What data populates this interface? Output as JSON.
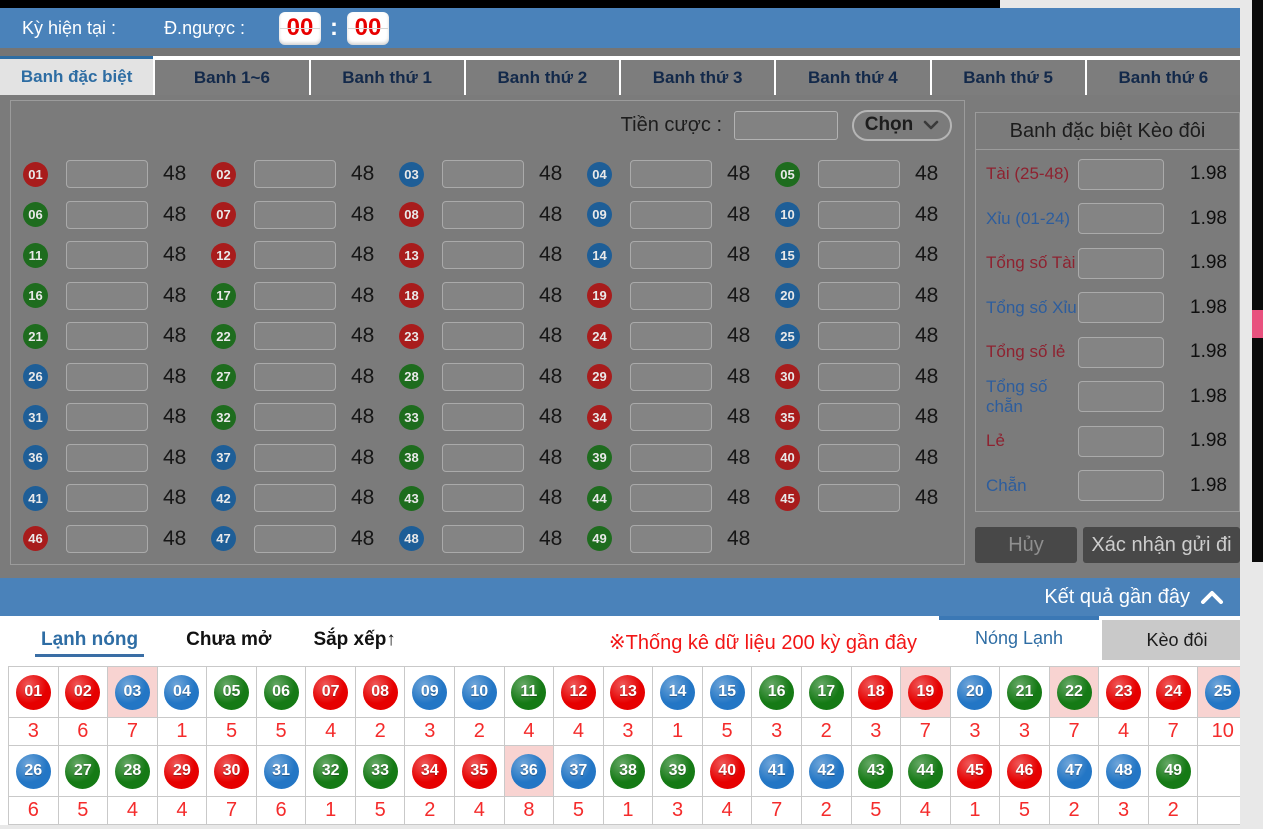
{
  "header": {
    "period_label": "Kỳ hiện tại :",
    "countdown_label": "Đ.ngược :",
    "countdown": {
      "minutes": "00",
      "seconds": "00",
      "separator": ":"
    }
  },
  "main_tabs": [
    {
      "id": "banh-dac-biet",
      "label": "Banh đặc biệt",
      "active": true
    },
    {
      "id": "banh-1-6",
      "label": "Banh 1~6",
      "active": false
    },
    {
      "id": "banh-thu-1",
      "label": "Banh thứ 1",
      "active": false
    },
    {
      "id": "banh-thu-2",
      "label": "Banh thứ 2",
      "active": false
    },
    {
      "id": "banh-thu-3",
      "label": "Banh thứ 3",
      "active": false
    },
    {
      "id": "banh-thu-4",
      "label": "Banh thứ 4",
      "active": false
    },
    {
      "id": "banh-thu-5",
      "label": "Banh thứ 5",
      "active": false
    },
    {
      "id": "banh-thu-6",
      "label": "Banh thứ 6",
      "active": false
    }
  ],
  "bet_panel": {
    "amount_label": "Tiền cược :",
    "amount_value": "",
    "select_label": "Chọn",
    "odds_display": "48",
    "numbers": [
      "01",
      "02",
      "03",
      "04",
      "05",
      "06",
      "07",
      "08",
      "09",
      "10",
      "11",
      "12",
      "13",
      "14",
      "15",
      "16",
      "17",
      "18",
      "19",
      "20",
      "21",
      "22",
      "23",
      "24",
      "25",
      "26",
      "27",
      "28",
      "29",
      "30",
      "31",
      "32",
      "33",
      "34",
      "35",
      "36",
      "37",
      "38",
      "39",
      "40",
      "41",
      "42",
      "43",
      "44",
      "45",
      "46",
      "47",
      "48",
      "49"
    ]
  },
  "ball_colors": {
    "red": [
      1,
      2,
      7,
      8,
      12,
      13,
      18,
      19,
      23,
      24,
      29,
      30,
      34,
      35,
      40,
      45,
      46
    ],
    "blue": [
      3,
      4,
      9,
      10,
      14,
      15,
      20,
      25,
      26,
      31,
      36,
      37,
      41,
      42,
      47,
      48
    ],
    "green": [
      5,
      6,
      11,
      16,
      17,
      21,
      22,
      27,
      28,
      32,
      33,
      38,
      39,
      43,
      44,
      49
    ]
  },
  "side_panel": {
    "title": "Banh đặc biệt Kèo đôi",
    "rows": [
      {
        "label": "Tài (25-48)",
        "tone": "red",
        "odds": "1.98"
      },
      {
        "label": "Xỉu (01-24)",
        "tone": "blue",
        "odds": "1.98"
      },
      {
        "label": "Tổng số Tài",
        "tone": "red",
        "odds": "1.98"
      },
      {
        "label": "Tổng số Xỉu",
        "tone": "blue",
        "odds": "1.98"
      },
      {
        "label": "Tổng số lẻ",
        "tone": "red",
        "odds": "1.98"
      },
      {
        "label": "Tổng số chẵn",
        "tone": "blue",
        "odds": "1.98"
      },
      {
        "label": "Lẻ",
        "tone": "red",
        "odds": "1.98"
      },
      {
        "label": "Chẵn",
        "tone": "blue",
        "odds": "1.98"
      }
    ],
    "cancel_label": "Hủy",
    "confirm_label": "Xác nhận gửi đi"
  },
  "results_bar": {
    "label": "Kết quả gần đây"
  },
  "stats": {
    "filter_tabs": [
      {
        "id": "lanh-nong",
        "label": "Lạnh nóng",
        "active": true
      },
      {
        "id": "chua-mo",
        "label": "Chưa mở",
        "active": false
      },
      {
        "id": "sap-xep",
        "label": "Sắp xếp↑",
        "active": false
      }
    ],
    "notice": "※Thống kê dữ liệu 200 kỳ gần đây",
    "view_tabs": [
      {
        "id": "nong-lanh",
        "label": "Nóng Lạnh",
        "active": true
      },
      {
        "id": "keo-doi",
        "label": "Kèo đôi",
        "active": false
      }
    ],
    "columns_per_row": 25,
    "cells": [
      {
        "num": "01",
        "count": "3",
        "hot": false
      },
      {
        "num": "02",
        "count": "6",
        "hot": false
      },
      {
        "num": "03",
        "count": "7",
        "hot": true
      },
      {
        "num": "04",
        "count": "1",
        "hot": false
      },
      {
        "num": "05",
        "count": "5",
        "hot": false
      },
      {
        "num": "06",
        "count": "5",
        "hot": false
      },
      {
        "num": "07",
        "count": "4",
        "hot": false
      },
      {
        "num": "08",
        "count": "2",
        "hot": false
      },
      {
        "num": "09",
        "count": "3",
        "hot": false
      },
      {
        "num": "10",
        "count": "2",
        "hot": false
      },
      {
        "num": "11",
        "count": "4",
        "hot": false
      },
      {
        "num": "12",
        "count": "4",
        "hot": false
      },
      {
        "num": "13",
        "count": "3",
        "hot": false
      },
      {
        "num": "14",
        "count": "1",
        "hot": false
      },
      {
        "num": "15",
        "count": "5",
        "hot": false
      },
      {
        "num": "16",
        "count": "3",
        "hot": false
      },
      {
        "num": "17",
        "count": "2",
        "hot": false
      },
      {
        "num": "18",
        "count": "3",
        "hot": false
      },
      {
        "num": "19",
        "count": "7",
        "hot": true
      },
      {
        "num": "20",
        "count": "3",
        "hot": false
      },
      {
        "num": "21",
        "count": "3",
        "hot": false
      },
      {
        "num": "22",
        "count": "7",
        "hot": true
      },
      {
        "num": "23",
        "count": "4",
        "hot": false
      },
      {
        "num": "24",
        "count": "7",
        "hot": false
      },
      {
        "num": "25",
        "count": "10",
        "hot": true
      },
      {
        "num": "26",
        "count": "6",
        "hot": false
      },
      {
        "num": "27",
        "count": "5",
        "hot": false
      },
      {
        "num": "28",
        "count": "4",
        "hot": false
      },
      {
        "num": "29",
        "count": "4",
        "hot": false
      },
      {
        "num": "30",
        "count": "7",
        "hot": false
      },
      {
        "num": "31",
        "count": "6",
        "hot": false
      },
      {
        "num": "32",
        "count": "1",
        "hot": false
      },
      {
        "num": "33",
        "count": "5",
        "hot": false
      },
      {
        "num": "34",
        "count": "2",
        "hot": false
      },
      {
        "num": "35",
        "count": "4",
        "hot": false
      },
      {
        "num": "36",
        "count": "8",
        "hot": true
      },
      {
        "num": "37",
        "count": "5",
        "hot": false
      },
      {
        "num": "38",
        "count": "1",
        "hot": false
      },
      {
        "num": "39",
        "count": "3",
        "hot": false
      },
      {
        "num": "40",
        "count": "4",
        "hot": false
      },
      {
        "num": "41",
        "count": "7",
        "hot": false
      },
      {
        "num": "42",
        "count": "2",
        "hot": false
      },
      {
        "num": "43",
        "count": "5",
        "hot": false
      },
      {
        "num": "44",
        "count": "4",
        "hot": false
      },
      {
        "num": "45",
        "count": "1",
        "hot": false
      },
      {
        "num": "46",
        "count": "5",
        "hot": false
      },
      {
        "num": "47",
        "count": "2",
        "hot": false
      },
      {
        "num": "48",
        "count": "3",
        "hot": false
      },
      {
        "num": "49",
        "count": "2",
        "hot": false
      }
    ]
  },
  "colors": {
    "accent_blue": "#4a82ba",
    "ball_red": "#e60000",
    "ball_blue": "#2376c5",
    "ball_green": "#157a15",
    "hot_highlight": "#f8d3d1",
    "notice_red": "#f21515"
  }
}
